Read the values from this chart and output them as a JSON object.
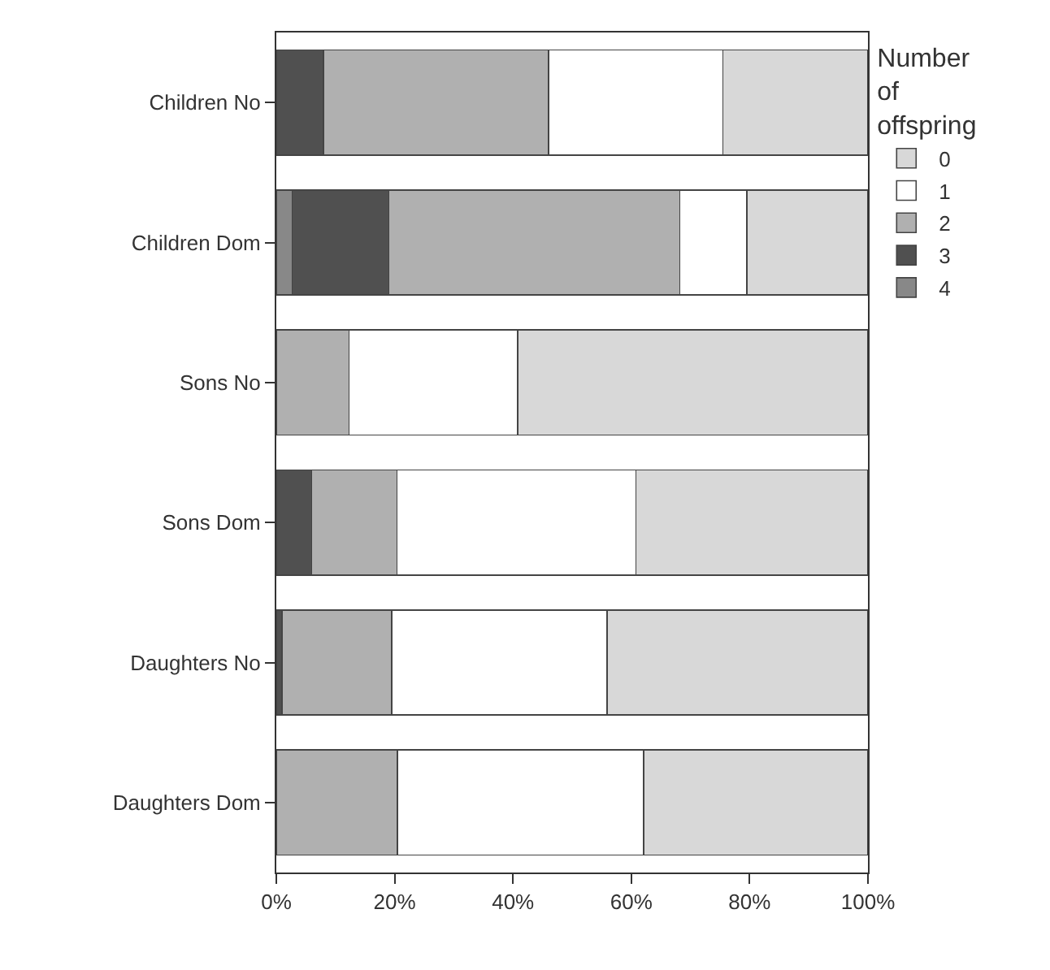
{
  "chart_data": {
    "type": "bar",
    "orientation": "horizontal",
    "stacked": true,
    "categories": [
      "Children No",
      "Children Dom",
      "Sons No",
      "Sons Dom",
      "Daughters No",
      "Daughters Dom"
    ],
    "legend_title": "Number of offspring",
    "series": [
      {
        "name": "4",
        "color": "#888888",
        "values": [
          0,
          2.7,
          0,
          0,
          0,
          0
        ]
      },
      {
        "name": "3",
        "color": "#505050",
        "values": [
          8,
          16.3,
          0,
          6,
          1,
          0
        ]
      },
      {
        "name": "2",
        "color": "#b0b0b0",
        "values": [
          38,
          49.2,
          12.3,
          14.4,
          18.5,
          20.5
        ]
      },
      {
        "name": "1",
        "color": "#ffffff",
        "values": [
          29.5,
          11.3,
          28.5,
          40.4,
          36.4,
          41.6
        ]
      },
      {
        "name": "0",
        "color": "#d8d8d8",
        "values": [
          24.5,
          20.5,
          59.2,
          39.2,
          44.1,
          37.9
        ]
      }
    ],
    "xlim": [
      0,
      100
    ],
    "xticks": [
      {
        "value": 0,
        "label": "0%"
      },
      {
        "value": 20,
        "label": "20%"
      },
      {
        "value": 40,
        "label": "40%"
      },
      {
        "value": 60,
        "label": "60%"
      },
      {
        "value": 80,
        "label": "80%"
      },
      {
        "value": 100,
        "label": "100%"
      }
    ],
    "legend": "top right"
  }
}
